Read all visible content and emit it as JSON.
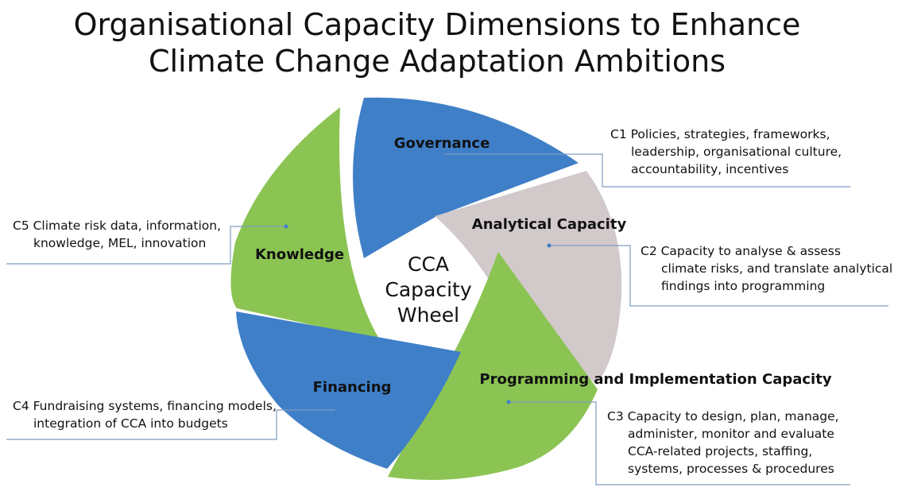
{
  "title": {
    "line1": "Organisational Capacity Dimensions to Enhance",
    "line2": "Climate Change Adaptation Ambitions"
  },
  "center": {
    "line1": "CCA",
    "line2": "Capacity",
    "line3": "Wheel"
  },
  "segments": [
    {
      "id": "governance",
      "label": "Governance",
      "color": "#3f7fc8"
    },
    {
      "id": "analytical",
      "label": "Analytical Capacity",
      "color": "#d2c9ca"
    },
    {
      "id": "programming",
      "label": "Programming and Implementation Capacity",
      "color": "#8bc453"
    },
    {
      "id": "financing",
      "label": "Financing",
      "color": "#3f7fc8"
    },
    {
      "id": "knowledge",
      "label": "Knowledge",
      "color": "#8bc453"
    }
  ],
  "descriptions": {
    "c1": {
      "line1": "C1 Policies, strategies, frameworks,",
      "line2": "leadership, organisational culture,",
      "line3": "accountability, incentives"
    },
    "c2": {
      "line1": "C2 Capacity to analyse & assess",
      "line2": "climate risks, and translate analytical",
      "line3": "findings into programming"
    },
    "c3": {
      "line1": "C3 Capacity to design, plan, manage,",
      "line2": "administer, monitor and evaluate",
      "line3": "CCA-related projects, staffing,",
      "line4": "systems, processes & procedures"
    },
    "c4": {
      "line1": "C4 Fundraising systems, financing models,",
      "line2": "integration of CCA into budgets"
    },
    "c5": {
      "line1": "C5 Climate risk data, information,",
      "line2": "knowledge, MEL, innovation"
    }
  },
  "colors": {
    "connector": "#7f9cc0",
    "blue": "#3f7fc8",
    "green": "#8bc453",
    "grey": "#d2c9ca"
  }
}
